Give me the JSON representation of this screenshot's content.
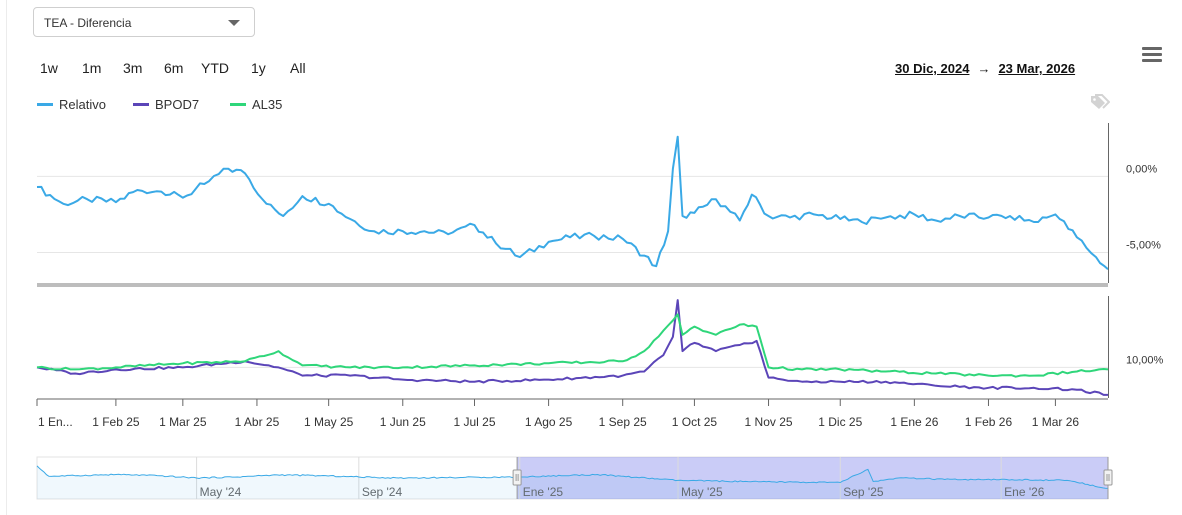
{
  "selector": {
    "value": "TEA - Diferencia"
  },
  "range_buttons": [
    "1w",
    "1m",
    "3m",
    "6m",
    "YTD",
    "1y",
    "All"
  ],
  "date_range": {
    "from": "30 Dic, 2024",
    "arrow": "→",
    "to": "23 Mar, 2026"
  },
  "icons": {
    "menu": "hamburger-menu-icon",
    "annotations": "tag-icon"
  },
  "chart_data": {
    "type": "line",
    "colors": {
      "Relativo": "#3aa9e6",
      "BPOD7": "#5b45b8",
      "AL35": "#2fd67a"
    },
    "legend": [
      "Relativo",
      "BPOD7",
      "AL35"
    ],
    "legend_position": "top-left",
    "grid": true,
    "x_ticks": [
      "1 En...",
      "1 Feb 25",
      "1 Mar 25",
      "1 Abr 25",
      "1 May 25",
      "1 Jun 25",
      "1 Jul 25",
      "1 Ago 25",
      "1 Sep 25",
      "1 Oct 25",
      "1 Nov 25",
      "1 Dic 25",
      "1 Ene 26",
      "1 Feb 26",
      "1 Mar 26"
    ],
    "xlim": [
      "2024-12-30",
      "2026-03-23"
    ],
    "panels": [
      {
        "name": "top",
        "ylim": [
          -7,
          3.5
        ],
        "y_ticks": [
          {
            "value": 0,
            "label": "0,00%"
          },
          {
            "value": -5,
            "label": "-5,00%"
          }
        ],
        "series": [
          {
            "name": "Relativo",
            "x": [
              "2024-12-30",
              "2025-01-10",
              "2025-01-20",
              "2025-02-01",
              "2025-02-10",
              "2025-02-20",
              "2025-03-01",
              "2025-03-10",
              "2025-03-20",
              "2025-03-27",
              "2025-04-05",
              "2025-04-12",
              "2025-04-20",
              "2025-05-01",
              "2025-05-10",
              "2025-05-20",
              "2025-06-01",
              "2025-06-10",
              "2025-06-20",
              "2025-07-01",
              "2025-07-10",
              "2025-07-20",
              "2025-08-01",
              "2025-08-10",
              "2025-08-20",
              "2025-09-01",
              "2025-09-10",
              "2025-09-15",
              "2025-09-20",
              "2025-09-22",
              "2025-09-24",
              "2025-09-26",
              "2025-10-01",
              "2025-10-10",
              "2025-10-20",
              "2025-10-25",
              "2025-11-01",
              "2025-11-10",
              "2025-11-20",
              "2025-12-01",
              "2025-12-10",
              "2025-12-20",
              "2026-01-01",
              "2026-01-10",
              "2026-01-20",
              "2026-02-01",
              "2026-02-10",
              "2026-02-20",
              "2026-03-01",
              "2026-03-10",
              "2026-03-18",
              "2026-03-23"
            ],
            "values": [
              -0.7,
              -1.8,
              -1.5,
              -1.7,
              -0.9,
              -1.0,
              -1.4,
              -0.5,
              0.5,
              0.2,
              -1.8,
              -2.6,
              -1.3,
              -1.8,
              -2.8,
              -3.6,
              -3.6,
              -3.6,
              -3.8,
              -3.2,
              -4.4,
              -5.3,
              -4.3,
              -4.0,
              -3.9,
              -4.1,
              -5.2,
              -5.9,
              -3.6,
              0.5,
              2.6,
              -2.6,
              -2.4,
              -1.5,
              -2.9,
              -1.2,
              -2.6,
              -2.7,
              -2.5,
              -2.8,
              -3.0,
              -2.7,
              -2.5,
              -2.9,
              -2.6,
              -2.7,
              -2.6,
              -3.0,
              -2.5,
              -4.0,
              -5.3,
              -6.1
            ]
          }
        ]
      },
      {
        "name": "bottom",
        "ylim": [
          8.5,
          13.5
        ],
        "y_ticks": [
          {
            "value": 10,
            "label": "10,00%"
          }
        ],
        "series": [
          {
            "name": "BPOD7",
            "x": [
              "2024-12-30",
              "2025-01-15",
              "2025-02-01",
              "2025-03-01",
              "2025-03-27",
              "2025-04-10",
              "2025-04-20",
              "2025-05-10",
              "2025-06-01",
              "2025-07-01",
              "2025-08-01",
              "2025-09-01",
              "2025-09-10",
              "2025-09-18",
              "2025-09-22",
              "2025-09-24",
              "2025-09-26",
              "2025-10-01",
              "2025-10-10",
              "2025-10-20",
              "2025-10-27",
              "2025-11-01",
              "2025-11-15",
              "2025-12-01",
              "2025-12-20",
              "2026-01-10",
              "2026-02-01",
              "2026-02-20",
              "2026-03-10",
              "2026-03-23"
            ],
            "values": [
              10.0,
              9.7,
              9.9,
              10.0,
              10.3,
              10.0,
              9.6,
              9.6,
              9.4,
              9.3,
              9.4,
              9.6,
              9.8,
              10.6,
              11.5,
              13.3,
              10.8,
              11.2,
              10.8,
              11.1,
              11.3,
              9.5,
              9.3,
              9.3,
              9.3,
              9.1,
              9.0,
              9.0,
              8.9,
              8.65
            ]
          },
          {
            "name": "AL35",
            "x": [
              "2024-12-30",
              "2025-01-15",
              "2025-02-01",
              "2025-03-01",
              "2025-03-27",
              "2025-04-10",
              "2025-04-20",
              "2025-05-10",
              "2025-06-01",
              "2025-07-01",
              "2025-08-01",
              "2025-09-01",
              "2025-09-10",
              "2025-09-18",
              "2025-09-22",
              "2025-09-24",
              "2025-09-26",
              "2025-10-01",
              "2025-10-10",
              "2025-10-20",
              "2025-10-27",
              "2025-11-01",
              "2025-11-15",
              "2025-12-01",
              "2025-12-20",
              "2026-01-10",
              "2026-02-01",
              "2026-02-20",
              "2026-03-10",
              "2026-03-23"
            ],
            "values": [
              10.0,
              9.9,
              10.0,
              10.2,
              10.3,
              10.8,
              10.1,
              10.0,
              10.0,
              10.1,
              10.2,
              10.3,
              10.8,
              11.8,
              12.3,
              12.6,
              11.6,
              12.0,
              11.6,
              12.1,
              12.0,
              10.0,
              9.9,
              9.9,
              9.8,
              9.7,
              9.6,
              9.6,
              9.8,
              9.9
            ]
          }
        ]
      }
    ],
    "navigator": {
      "labels": [
        "May '24",
        "Sep '24",
        "Ene '25",
        "May '25",
        "Sep '25",
        "Ene '26"
      ],
      "xlim": [
        "2024-01-01",
        "2026-03-23"
      ],
      "label_dates": [
        "2024-05-01",
        "2024-09-01",
        "2025-01-01",
        "2025-05-01",
        "2025-09-01",
        "2026-01-01"
      ],
      "selected": [
        "2024-12-30",
        "2026-03-23"
      ],
      "x": [
        "2024-01-01",
        "2024-01-10",
        "2024-02-01",
        "2024-03-01",
        "2024-04-01",
        "2024-05-01",
        "2024-06-01",
        "2024-07-01",
        "2024-08-01",
        "2024-09-01",
        "2024-10-01",
        "2024-11-01",
        "2024-12-01",
        "2025-01-01",
        "2025-03-01",
        "2025-05-01",
        "2025-07-01",
        "2025-09-01",
        "2025-09-22",
        "2025-09-26",
        "2025-10-15",
        "2025-12-01",
        "2026-01-15",
        "2026-02-20",
        "2026-03-23"
      ],
      "values": [
        2.0,
        -1.0,
        -0.8,
        -0.5,
        -0.8,
        -1.5,
        -1.2,
        -0.6,
        -0.8,
        -1.2,
        -1.5,
        -1.4,
        -1.3,
        -1.2,
        -0.5,
        -2.2,
        -2.6,
        -2.8,
        1.0,
        -2.5,
        -1.5,
        -2.0,
        -2.0,
        -2.2,
        -4.5
      ]
    }
  }
}
